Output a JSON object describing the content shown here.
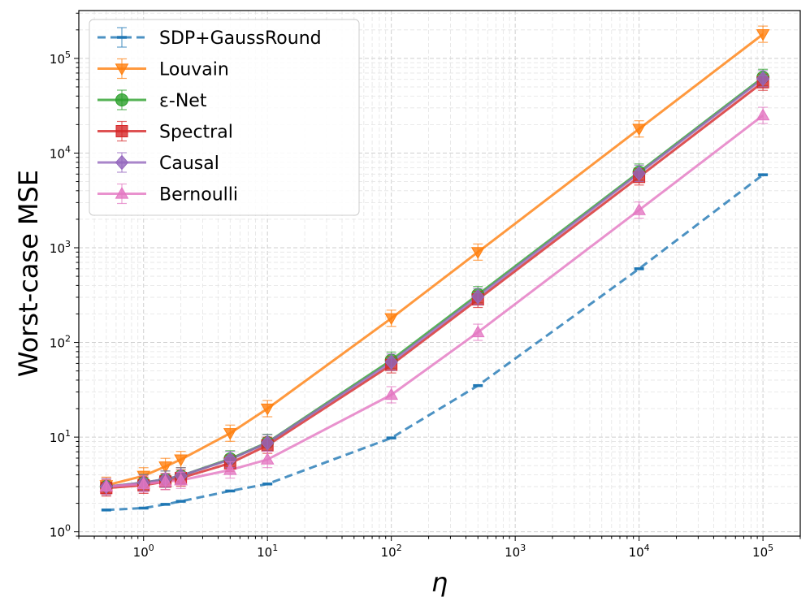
{
  "chart_data": {
    "type": "line",
    "title": "",
    "xlabel": "η",
    "ylabel": "Worst-case MSE",
    "xscale": "log",
    "yscale": "log",
    "xlim": [
      0.3,
      200000
    ],
    "ylim": [
      0.9,
      320000
    ],
    "grid": true,
    "legend_position": "top-left",
    "x": [
      0.5,
      1,
      1.5,
      2,
      5,
      10,
      100,
      500,
      10000,
      100000
    ],
    "x_tick_labels": [
      {
        "base": "10",
        "exp": "0",
        "value": 1
      },
      {
        "base": "10",
        "exp": "1",
        "value": 10
      },
      {
        "base": "10",
        "exp": "2",
        "value": 100
      },
      {
        "base": "10",
        "exp": "3",
        "value": 1000
      },
      {
        "base": "10",
        "exp": "4",
        "value": 10000
      },
      {
        "base": "10",
        "exp": "5",
        "value": 100000
      }
    ],
    "y_tick_labels": [
      {
        "base": "10",
        "exp": "0",
        "value": 1
      },
      {
        "base": "10",
        "exp": "1",
        "value": 10
      },
      {
        "base": "10",
        "exp": "2",
        "value": 100
      },
      {
        "base": "10",
        "exp": "3",
        "value": 1000
      },
      {
        "base": "10",
        "exp": "4",
        "value": 10000
      },
      {
        "base": "10",
        "exp": "5",
        "value": 100000
      }
    ],
    "series": [
      {
        "name": "SDP+GaussRound",
        "color": "#1f77b4",
        "marker": "dash",
        "linestyle": "dashed",
        "values": [
          1.7,
          1.78,
          1.95,
          2.1,
          2.7,
          3.2,
          9.8,
          35,
          600,
          5900
        ]
      },
      {
        "name": "Louvain",
        "color": "#ff7f0e",
        "marker": "triangle-down",
        "linestyle": "solid",
        "values": [
          3.1,
          3.9,
          4.9,
          5.8,
          11,
          20,
          180,
          900,
          18000,
          180000
        ]
      },
      {
        "name": "ε-Net",
        "color": "#2ca02c",
        "marker": "circle",
        "linestyle": "solid",
        "values": [
          3.0,
          3.3,
          3.6,
          3.9,
          5.9,
          8.8,
          65,
          320,
          6300,
          63000
        ]
      },
      {
        "name": "Spectral",
        "color": "#d62728",
        "marker": "square",
        "linestyle": "solid",
        "values": [
          2.9,
          3.1,
          3.4,
          3.7,
          5.3,
          8.2,
          58,
          285,
          5600,
          56000
        ]
      },
      {
        "name": "Causal",
        "color": "#9467bd",
        "marker": "diamond",
        "linestyle": "solid",
        "values": [
          3.0,
          3.3,
          3.6,
          3.9,
          5.8,
          8.7,
          62,
          305,
          6100,
          61000
        ]
      },
      {
        "name": "Bernoulli",
        "color": "#e377c2",
        "marker": "triangle-up",
        "linestyle": "solid",
        "values": [
          3.0,
          3.2,
          3.4,
          3.5,
          4.5,
          5.8,
          28,
          128,
          2500,
          25000
        ]
      }
    ]
  }
}
